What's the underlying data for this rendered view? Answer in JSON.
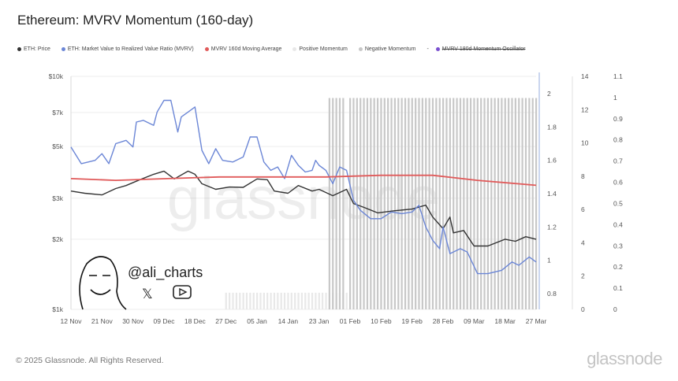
{
  "title": "Ethereum: MVRV Momentum (160-day)",
  "legend": [
    {
      "label": "ETH: Price",
      "color": "#333333",
      "struck": false
    },
    {
      "label": "ETH: Market Value to Realized Value Ratio (MVRV)",
      "color": "#6b86d6",
      "struck": false
    },
    {
      "label": "MVRV 160d Moving Average",
      "color": "#e05a5a",
      "struck": false
    },
    {
      "label": "Positive Momentum",
      "color": "#e8e8e8",
      "struck": false
    },
    {
      "label": "Negative Momentum",
      "color": "#c8c8c8",
      "struck": false
    },
    {
      "label": "MVRV 180d Momentum Oscillator",
      "color": "#7a4fd0",
      "struck": true
    }
  ],
  "watermark": "glassnode",
  "author": {
    "handle": "@ali_charts",
    "icons": [
      "x-logo-icon",
      "youtube-icon"
    ]
  },
  "footer": {
    "copyright": "© 2025 Glassnode. All Rights Reserved.",
    "logo": "glassnode"
  },
  "chart_data": {
    "type": "line",
    "title": "Ethereum: MVRV Momentum (160-day)",
    "x_ticks": [
      "12 Nov",
      "21 Nov",
      "30 Nov",
      "09 Dec",
      "18 Dec",
      "27 Dec",
      "05 Jan",
      "14 Jan",
      "23 Jan",
      "01 Feb",
      "10 Feb",
      "19 Feb",
      "28 Feb",
      "09 Mar",
      "18 Mar",
      "27 Mar"
    ],
    "x_range": [
      "2024-11-12",
      "2025-03-27"
    ],
    "axes": {
      "price": {
        "scale": "log",
        "range": [
          1000,
          10000
        ],
        "ticks": [
          "$1k",
          "$2k",
          "$3k",
          "$5k",
          "$7k",
          "$10k"
        ],
        "tick_values": [
          1000,
          2000,
          3000,
          5000,
          7000,
          10000
        ]
      },
      "mvrv": {
        "range": [
          0.72,
          2.1
        ],
        "ticks": [
          "0.8",
          "1",
          "1.2",
          "1.4",
          "1.6",
          "1.8",
          "2"
        ]
      },
      "momentum": {
        "range": [
          0,
          14
        ],
        "ticks": [
          "0",
          "2",
          "4",
          "6",
          "8",
          "10",
          "12",
          "14"
        ]
      },
      "oscillator": {
        "range": [
          0,
          1.1
        ],
        "ticks": [
          "0",
          "0.1",
          "0.2",
          "0.3",
          "0.4",
          "0.5",
          "0.6",
          "0.7",
          "0.8",
          "0.9",
          "1",
          "1.1"
        ]
      }
    },
    "grid": true,
    "legend_placement": "top",
    "series": [
      {
        "name": "ETH: Price",
        "axis": "price",
        "color": "#333333",
        "points": [
          [
            "2024-11-12",
            3220
          ],
          [
            "2024-11-16",
            3150
          ],
          [
            "2024-11-21",
            3100
          ],
          [
            "2024-11-25",
            3300
          ],
          [
            "2024-11-28",
            3400
          ],
          [
            "2024-12-02",
            3600
          ],
          [
            "2024-12-06",
            3800
          ],
          [
            "2024-12-09",
            3920
          ],
          [
            "2024-12-12",
            3630
          ],
          [
            "2024-12-16",
            3920
          ],
          [
            "2024-12-18",
            3800
          ],
          [
            "2024-12-20",
            3460
          ],
          [
            "2024-12-24",
            3275
          ],
          [
            "2024-12-28",
            3350
          ],
          [
            "2025-01-01",
            3340
          ],
          [
            "2025-01-05",
            3630
          ],
          [
            "2025-01-08",
            3600
          ],
          [
            "2025-01-10",
            3220
          ],
          [
            "2025-01-14",
            3150
          ],
          [
            "2025-01-17",
            3400
          ],
          [
            "2025-01-21",
            3220
          ],
          [
            "2025-01-23",
            3275
          ],
          [
            "2025-01-27",
            3075
          ],
          [
            "2025-01-31",
            3275
          ],
          [
            "2025-02-02",
            2845
          ],
          [
            "2025-02-05",
            2740
          ],
          [
            "2025-02-09",
            2595
          ],
          [
            "2025-02-14",
            2650
          ],
          [
            "2025-02-19",
            2695
          ],
          [
            "2025-02-23",
            2800
          ],
          [
            "2025-02-25",
            2490
          ],
          [
            "2025-02-28",
            2220
          ],
          [
            "2025-03-02",
            2490
          ],
          [
            "2025-03-03",
            2130
          ],
          [
            "2025-03-06",
            2180
          ],
          [
            "2025-03-09",
            1870
          ],
          [
            "2025-03-13",
            1870
          ],
          [
            "2025-03-18",
            2000
          ],
          [
            "2025-03-21",
            1960
          ],
          [
            "2025-03-24",
            2050
          ],
          [
            "2025-03-27",
            2000
          ]
        ]
      },
      {
        "name": "ETH: Market Value to Realized Value Ratio (MVRV)",
        "axis": "mvrv",
        "color": "#6b86d6",
        "points": [
          [
            "2024-11-12",
            1.68
          ],
          [
            "2024-11-15",
            1.58
          ],
          [
            "2024-11-19",
            1.6
          ],
          [
            "2024-11-21",
            1.64
          ],
          [
            "2024-11-23",
            1.58
          ],
          [
            "2024-11-25",
            1.7
          ],
          [
            "2024-11-28",
            1.72
          ],
          [
            "2024-11-30",
            1.68
          ],
          [
            "2024-12-01",
            1.83
          ],
          [
            "2024-12-03",
            1.84
          ],
          [
            "2024-12-06",
            1.81
          ],
          [
            "2024-12-07",
            1.89
          ],
          [
            "2024-12-09",
            1.96
          ],
          [
            "2024-12-11",
            1.96
          ],
          [
            "2024-12-13",
            1.77
          ],
          [
            "2024-12-14",
            1.86
          ],
          [
            "2024-12-16",
            1.89
          ],
          [
            "2024-12-18",
            1.92
          ],
          [
            "2024-12-20",
            1.66
          ],
          [
            "2024-12-22",
            1.58
          ],
          [
            "2024-12-24",
            1.67
          ],
          [
            "2024-12-26",
            1.6
          ],
          [
            "2024-12-29",
            1.59
          ],
          [
            "2025-01-01",
            1.62
          ],
          [
            "2025-01-03",
            1.74
          ],
          [
            "2025-01-05",
            1.74
          ],
          [
            "2025-01-07",
            1.59
          ],
          [
            "2025-01-09",
            1.54
          ],
          [
            "2025-01-11",
            1.56
          ],
          [
            "2025-01-13",
            1.49
          ],
          [
            "2025-01-15",
            1.63
          ],
          [
            "2025-01-17",
            1.57
          ],
          [
            "2025-01-19",
            1.53
          ],
          [
            "2025-01-21",
            1.54
          ],
          [
            "2025-01-22",
            1.6
          ],
          [
            "2025-01-23",
            1.57
          ],
          [
            "2025-01-25",
            1.54
          ],
          [
            "2025-01-27",
            1.46
          ],
          [
            "2025-01-29",
            1.56
          ],
          [
            "2025-01-31",
            1.54
          ],
          [
            "2025-02-02",
            1.36
          ],
          [
            "2025-02-04",
            1.3
          ],
          [
            "2025-02-07",
            1.25
          ],
          [
            "2025-02-10",
            1.25
          ],
          [
            "2025-02-13",
            1.29
          ],
          [
            "2025-02-16",
            1.28
          ],
          [
            "2025-02-19",
            1.29
          ],
          [
            "2025-02-21",
            1.33
          ],
          [
            "2025-02-23",
            1.2
          ],
          [
            "2025-02-25",
            1.12
          ],
          [
            "2025-02-27",
            1.07
          ],
          [
            "2025-02-28",
            1.2
          ],
          [
            "2025-03-02",
            1.04
          ],
          [
            "2025-03-05",
            1.07
          ],
          [
            "2025-03-07",
            1.05
          ],
          [
            "2025-03-10",
            0.92
          ],
          [
            "2025-03-13",
            0.92
          ],
          [
            "2025-03-17",
            0.94
          ],
          [
            "2025-03-20",
            0.99
          ],
          [
            "2025-03-22",
            0.97
          ],
          [
            "2025-03-25",
            1.02
          ],
          [
            "2025-03-27",
            0.99
          ]
        ]
      },
      {
        "name": "MVRV 160d Moving Average",
        "axis": "mvrv",
        "color": "#e05a5a",
        "points": [
          [
            "2024-11-12",
            1.49
          ],
          [
            "2024-11-25",
            1.48
          ],
          [
            "2024-12-10",
            1.49
          ],
          [
            "2024-12-25",
            1.5
          ],
          [
            "2025-01-10",
            1.5
          ],
          [
            "2025-01-25",
            1.5
          ],
          [
            "2025-02-10",
            1.51
          ],
          [
            "2025-02-25",
            1.51
          ],
          [
            "2025-03-10",
            1.48
          ],
          [
            "2025-03-27",
            1.45
          ]
        ]
      }
    ],
    "momentum_bars": [
      {
        "name": "Positive Momentum",
        "axis": "momentum",
        "color": "#e8e8e8",
        "from": "2024-12-27",
        "to": "2025-01-31",
        "value": 1.0
      },
      {
        "name": "Negative Momentum",
        "axis": "momentum",
        "color": "#c8c8c8",
        "from": "2025-01-26",
        "to": "2025-01-30",
        "value": 12.7
      },
      {
        "name": "Negative Momentum",
        "axis": "momentum",
        "color": "#c8c8c8",
        "from": "2025-02-01",
        "to": "2025-03-27",
        "value": 12.7
      }
    ]
  }
}
